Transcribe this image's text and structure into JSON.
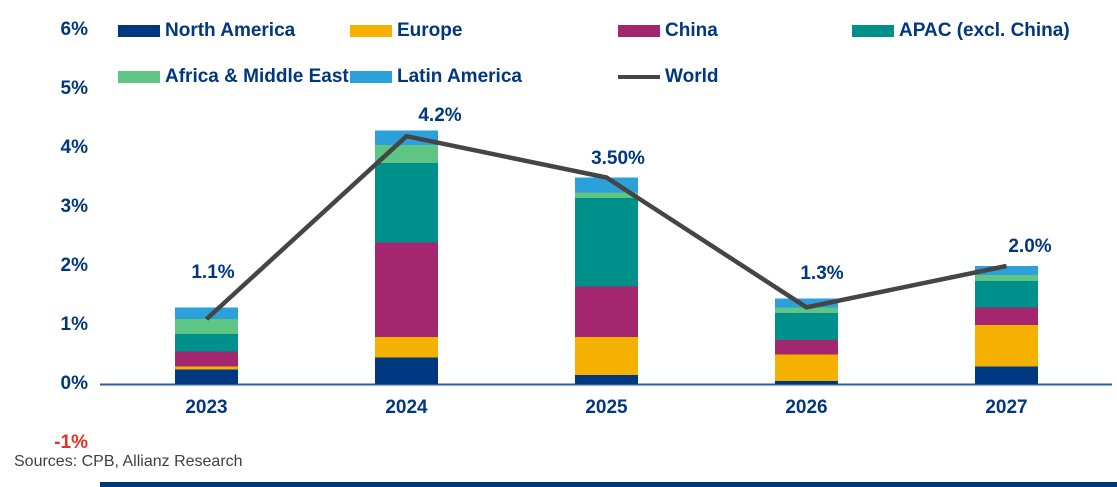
{
  "legend": {
    "items": [
      {
        "label": "North America",
        "color": "#003781",
        "swatch": "box"
      },
      {
        "label": "Europe",
        "color": "#F6B000",
        "swatch": "box"
      },
      {
        "label": "China",
        "color": "#A3266E",
        "swatch": "box"
      },
      {
        "label": "APAC (excl. China)",
        "color": "#00908C",
        "swatch": "box"
      },
      {
        "label": "Africa & Middle East",
        "color": "#5EC585",
        "swatch": "box"
      },
      {
        "label": "Latin America",
        "color": "#2CA0DA",
        "swatch": "box"
      },
      {
        "label": "World",
        "color": "#454545",
        "swatch": "line"
      }
    ]
  },
  "axis": {
    "y_ticks": [
      {
        "label": "6%",
        "value": 6,
        "color": "#003781"
      },
      {
        "label": "5%",
        "value": 5,
        "color": "#003781"
      },
      {
        "label": "4%",
        "value": 4,
        "color": "#003781"
      },
      {
        "label": "3%",
        "value": 3,
        "color": "#003781"
      },
      {
        "label": "2%",
        "value": 2,
        "color": "#003781"
      },
      {
        "label": "1%",
        "value": 1,
        "color": "#003781"
      },
      {
        "label": "0%",
        "value": 0,
        "color": "#003781"
      },
      {
        "label": "-1%",
        "value": -1,
        "color": "#E8321F"
      }
    ],
    "x_ticks": [
      "2023",
      "2024",
      "2025",
      "2026",
      "2027"
    ]
  },
  "chart_data": {
    "type": "bar",
    "subtype": "stacked-bars-with-line-overlay",
    "title": "",
    "xlabel": "",
    "ylabel": "",
    "ylim": [
      -1,
      6
    ],
    "grid": false,
    "legend_position": "top",
    "categories": [
      "2023",
      "2024",
      "2025",
      "2026",
      "2027"
    ],
    "series": [
      {
        "name": "North America",
        "color": "#003781",
        "values": [
          0.25,
          0.45,
          0.15,
          0.05,
          0.3
        ]
      },
      {
        "name": "Europe",
        "color": "#F6B000",
        "values": [
          0.05,
          0.35,
          0.65,
          0.45,
          0.7
        ]
      },
      {
        "name": "China",
        "color": "#A3266E",
        "values": [
          0.25,
          1.6,
          0.85,
          0.25,
          0.3
        ]
      },
      {
        "name": "APAC (excl. China)",
        "color": "#00908C",
        "values": [
          0.3,
          1.35,
          1.5,
          0.45,
          0.45
        ]
      },
      {
        "name": "Africa & Middle East",
        "color": "#5EC585",
        "values": [
          0.25,
          0.3,
          0.1,
          0.1,
          0.1
        ]
      },
      {
        "name": "Latin America",
        "color": "#2CA0DA",
        "values": [
          0.2,
          0.25,
          0.25,
          0.15,
          0.15
        ]
      }
    ],
    "line_series": {
      "name": "World",
      "color": "#454545",
      "values": [
        1.1,
        4.2,
        3.5,
        1.3,
        2.0
      ]
    },
    "value_labels": [
      "1.1%",
      "4.2%",
      "3.50%",
      "1.3%",
      "2.0%"
    ]
  },
  "footer": {
    "sources": "Sources: CPB, Allianz Research"
  },
  "colors": {
    "axis_line": "#2D5DA8",
    "text": "#003781",
    "negative_tick": "#E8321F"
  }
}
